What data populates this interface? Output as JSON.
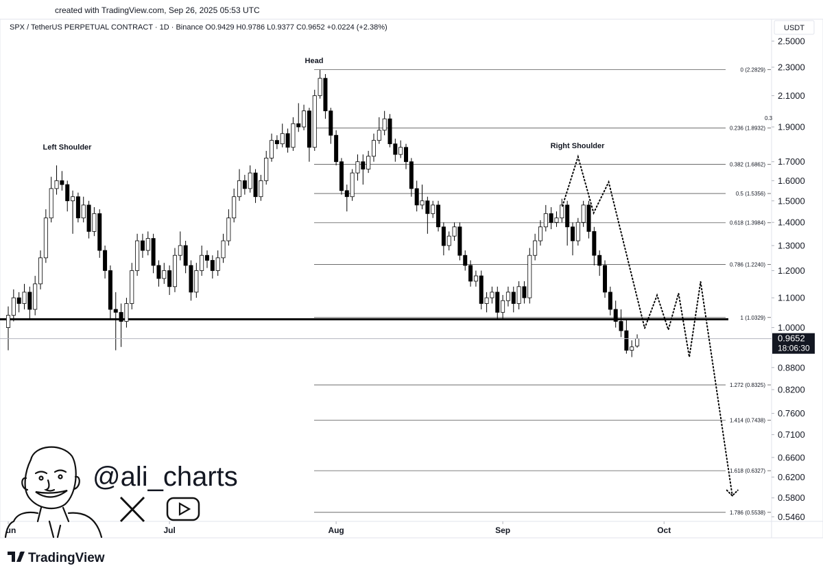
{
  "chart_data": {
    "type": "candlestick",
    "credit": "created with TradingView.com, Sep 26, 2025 05:53 UTC",
    "title": "SPX / TetherUS PERPETUAL CONTRACT · 1D · Binance  O0.9429  H0.9786  L0.9377  C0.9652  +0.0224 (+2.38%)",
    "currency": "USDT",
    "countdown": "18:06:30",
    "annotations": {
      "head": "Head",
      "left_shoulder": "Left Shoulder",
      "right_shoulder": "Right Shoulder",
      "fragment": "0.3"
    },
    "watermark": "@ali_charts",
    "brand": "TradingView",
    "log_scale": true,
    "up_color": "#ffffff",
    "down_color": "#000000",
    "edge_color": "#000000",
    "ylim": [
      0.538,
      2.67
    ],
    "yticks": [
      {
        "value": 2.5,
        "label": "2.5000"
      },
      {
        "value": 2.3,
        "label": "2.3000"
      },
      {
        "value": 2.1,
        "label": "2.1000"
      },
      {
        "value": 1.9,
        "label": "1.9000"
      },
      {
        "value": 1.7,
        "label": "1.7000"
      },
      {
        "value": 1.6,
        "label": "1.6000"
      },
      {
        "value": 1.5,
        "label": "1.5000"
      },
      {
        "value": 1.4,
        "label": "1.4000"
      },
      {
        "value": 1.3,
        "label": "1.3000"
      },
      {
        "value": 1.2,
        "label": "1.2000"
      },
      {
        "value": 1.1,
        "label": "1.1000"
      },
      {
        "value": 1,
        "label": "1.0000"
      },
      {
        "value": 0.88,
        "label": "0.8800"
      },
      {
        "value": 0.82,
        "label": "0.8200"
      },
      {
        "value": 0.76,
        "label": "0.7600"
      },
      {
        "value": 0.71,
        "label": "0.7100"
      },
      {
        "value": 0.66,
        "label": "0.6600"
      },
      {
        "value": 0.62,
        "label": "0.6200"
      },
      {
        "value": 0.58,
        "label": "0.5800"
      },
      {
        "value": 0.546,
        "label": "0.5460"
      }
    ],
    "xlim": [
      -1.53,
      142
    ],
    "xticks": [
      {
        "value": 0,
        "label": "un"
      },
      {
        "value": 30,
        "label": "Jul"
      },
      {
        "value": 61,
        "label": "Aug"
      },
      {
        "value": 92,
        "label": "Sep"
      },
      {
        "value": 122,
        "label": "Oct"
      }
    ],
    "neckline": 1.027,
    "fib_levels": [
      {
        "value": 2.2829,
        "label": "0 (2.2829)"
      },
      {
        "value": 1.8932,
        "label": "0.236 (1.8932)"
      },
      {
        "value": 1.6862,
        "label": "0.382 (1.6862)"
      },
      {
        "value": 1.5356,
        "label": "0.5 (1.5356)"
      },
      {
        "value": 1.3984,
        "label": "0.618 (1.3984)"
      },
      {
        "value": 1.224,
        "label": "0.786 (1.2240)"
      },
      {
        "value": 1.0329,
        "label": "1 (1.0329)"
      },
      {
        "value": 0.8325,
        "label": "1.272 (0.8325)"
      },
      {
        "value": 0.7438,
        "label": "1.414 (0.7438)"
      },
      {
        "value": 0.6327,
        "label": "1.618 (0.6327)"
      },
      {
        "value": 0.5538,
        "label": "1.786 (0.5538)"
      }
    ],
    "projection": {
      "x": [
        103.1,
        106.0,
        108.9,
        111.7,
        118.4,
        120.7,
        122.8,
        124.7,
        126.7,
        128.8,
        134.7
      ],
      "y": [
        1.475,
        1.727,
        1.443,
        1.593,
        0.998,
        1.109,
        0.993,
        1.116,
        0.91,
        1.158,
        0.584
      ]
    },
    "candles": [
      [
        1.0,
        1.07,
        0.93,
        1.04
      ],
      [
        1.04,
        1.13,
        1.02,
        1.1
      ],
      [
        1.1,
        1.12,
        1.05,
        1.08
      ],
      [
        1.08,
        1.15,
        1.06,
        1.12
      ],
      [
        1.12,
        1.14,
        1.03,
        1.06
      ],
      [
        1.06,
        1.18,
        1.04,
        1.15
      ],
      [
        1.15,
        1.28,
        1.13,
        1.25
      ],
      [
        1.25,
        1.46,
        1.23,
        1.42
      ],
      [
        1.42,
        1.62,
        1.4,
        1.56
      ],
      [
        1.56,
        1.68,
        1.53,
        1.6
      ],
      [
        1.6,
        1.65,
        1.55,
        1.58
      ],
      [
        1.58,
        1.6,
        1.45,
        1.5
      ],
      [
        1.5,
        1.55,
        1.35,
        1.52
      ],
      [
        1.52,
        1.54,
        1.4,
        1.42
      ],
      [
        1.42,
        1.52,
        1.4,
        1.48
      ],
      [
        1.48,
        1.5,
        1.33,
        1.36
      ],
      [
        1.36,
        1.47,
        1.34,
        1.44
      ],
      [
        1.44,
        1.46,
        1.25,
        1.28
      ],
      [
        1.28,
        1.3,
        1.17,
        1.2
      ],
      [
        1.2,
        1.22,
        1.03,
        1.06
      ],
      [
        1.06,
        1.12,
        0.93,
        1.05
      ],
      [
        1.05,
        1.08,
        0.94,
        1.02
      ],
      [
        1.02,
        1.1,
        1.0,
        1.08
      ],
      [
        1.08,
        1.23,
        1.06,
        1.2
      ],
      [
        1.2,
        1.35,
        1.18,
        1.32
      ],
      [
        1.32,
        1.35,
        1.25,
        1.28
      ],
      [
        1.28,
        1.36,
        1.26,
        1.33
      ],
      [
        1.33,
        1.35,
        1.19,
        1.22
      ],
      [
        1.22,
        1.24,
        1.14,
        1.17
      ],
      [
        1.17,
        1.23,
        1.15,
        1.2
      ],
      [
        1.2,
        1.22,
        1.11,
        1.14
      ],
      [
        1.14,
        1.29,
        1.12,
        1.26
      ],
      [
        1.26,
        1.36,
        1.24,
        1.3
      ],
      [
        1.3,
        1.32,
        1.19,
        1.22
      ],
      [
        1.22,
        1.24,
        1.09,
        1.12
      ],
      [
        1.12,
        1.23,
        1.1,
        1.2
      ],
      [
        1.2,
        1.3,
        1.18,
        1.26
      ],
      [
        1.26,
        1.28,
        1.21,
        1.24
      ],
      [
        1.24,
        1.26,
        1.17,
        1.2
      ],
      [
        1.2,
        1.28,
        1.18,
        1.25
      ],
      [
        1.25,
        1.35,
        1.23,
        1.32
      ],
      [
        1.32,
        1.46,
        1.3,
        1.42
      ],
      [
        1.42,
        1.56,
        1.4,
        1.52
      ],
      [
        1.52,
        1.66,
        1.5,
        1.6
      ],
      [
        1.6,
        1.63,
        1.53,
        1.56
      ],
      [
        1.56,
        1.68,
        1.54,
        1.64
      ],
      [
        1.64,
        1.66,
        1.49,
        1.52
      ],
      [
        1.52,
        1.63,
        1.5,
        1.6
      ],
      [
        1.6,
        1.76,
        1.58,
        1.72
      ],
      [
        1.72,
        1.86,
        1.7,
        1.82
      ],
      [
        1.82,
        1.85,
        1.77,
        1.8
      ],
      [
        1.8,
        1.92,
        1.78,
        1.86
      ],
      [
        1.86,
        1.89,
        1.75,
        1.78
      ],
      [
        1.78,
        1.96,
        1.76,
        1.92
      ],
      [
        1.92,
        2.05,
        1.87,
        1.9
      ],
      [
        1.9,
        2.04,
        1.88,
        2.0
      ],
      [
        2.0,
        2.02,
        1.7,
        1.78
      ],
      [
        1.78,
        2.14,
        1.76,
        2.1
      ],
      [
        2.1,
        2.28,
        2.08,
        2.22
      ],
      [
        2.22,
        2.25,
        1.95,
        2.0
      ],
      [
        2.0,
        2.02,
        1.8,
        1.85
      ],
      [
        1.85,
        1.88,
        1.68,
        1.7
      ],
      [
        1.7,
        1.72,
        1.53,
        1.55
      ],
      [
        1.55,
        1.58,
        1.45,
        1.52
      ],
      [
        1.52,
        1.66,
        1.5,
        1.64
      ],
      [
        1.64,
        1.74,
        1.6,
        1.7
      ],
      [
        1.7,
        1.74,
        1.58,
        1.66
      ],
      [
        1.66,
        1.76,
        1.64,
        1.73
      ],
      [
        1.73,
        1.86,
        1.7,
        1.82
      ],
      [
        1.82,
        1.96,
        1.8,
        1.88
      ],
      [
        1.88,
        2.0,
        1.85,
        1.95
      ],
      [
        1.95,
        1.98,
        1.78,
        1.8
      ],
      [
        1.8,
        1.83,
        1.7,
        1.74
      ],
      [
        1.74,
        1.82,
        1.72,
        1.78
      ],
      [
        1.78,
        1.8,
        1.66,
        1.7
      ],
      [
        1.7,
        1.72,
        1.52,
        1.56
      ],
      [
        1.56,
        1.6,
        1.45,
        1.48
      ],
      [
        1.48,
        1.58,
        1.46,
        1.5
      ],
      [
        1.5,
        1.52,
        1.35,
        1.44
      ],
      [
        1.44,
        1.5,
        1.42,
        1.48
      ],
      [
        1.48,
        1.5,
        1.36,
        1.38
      ],
      [
        1.38,
        1.4,
        1.26,
        1.3
      ],
      [
        1.3,
        1.36,
        1.28,
        1.34
      ],
      [
        1.34,
        1.4,
        1.32,
        1.38
      ],
      [
        1.38,
        1.4,
        1.24,
        1.26
      ],
      [
        1.26,
        1.28,
        1.2,
        1.22
      ],
      [
        1.22,
        1.24,
        1.14,
        1.16
      ],
      [
        1.16,
        1.2,
        1.14,
        1.18
      ],
      [
        1.18,
        1.2,
        1.06,
        1.08
      ],
      [
        1.08,
        1.12,
        1.05,
        1.1
      ],
      [
        1.1,
        1.14,
        1.08,
        1.12
      ],
      [
        1.12,
        1.14,
        1.03,
        1.05
      ],
      [
        1.05,
        1.11,
        1.03,
        1.09
      ],
      [
        1.09,
        1.14,
        1.07,
        1.12
      ],
      [
        1.12,
        1.14,
        1.05,
        1.08
      ],
      [
        1.08,
        1.16,
        1.06,
        1.14
      ],
      [
        1.14,
        1.16,
        1.08,
        1.1
      ],
      [
        1.1,
        1.29,
        1.08,
        1.26
      ],
      [
        1.26,
        1.35,
        1.24,
        1.32
      ],
      [
        1.32,
        1.41,
        1.3,
        1.38
      ],
      [
        1.38,
        1.48,
        1.36,
        1.44
      ],
      [
        1.44,
        1.47,
        1.37,
        1.4
      ],
      [
        1.4,
        1.45,
        1.38,
        1.42
      ],
      [
        1.42,
        1.51,
        1.4,
        1.48
      ],
      [
        1.48,
        1.5,
        1.3,
        1.38
      ],
      [
        1.38,
        1.4,
        1.26,
        1.32
      ],
      [
        1.32,
        1.42,
        1.3,
        1.4
      ],
      [
        1.4,
        1.5,
        1.38,
        1.48
      ],
      [
        1.48,
        1.5,
        1.33,
        1.36
      ],
      [
        1.36,
        1.38,
        1.22,
        1.26
      ],
      [
        1.26,
        1.28,
        1.18,
        1.22
      ],
      [
        1.22,
        1.24,
        1.1,
        1.12
      ],
      [
        1.12,
        1.14,
        1.04,
        1.06
      ],
      [
        1.06,
        1.09,
        1.0,
        1.02
      ],
      [
        1.02,
        1.06,
        0.97,
        0.99
      ],
      [
        0.99,
        1.03,
        0.92,
        0.93
      ],
      [
        0.93,
        0.96,
        0.91,
        0.94
      ],
      [
        0.9429,
        0.9786,
        0.9377,
        0.9652
      ]
    ]
  }
}
